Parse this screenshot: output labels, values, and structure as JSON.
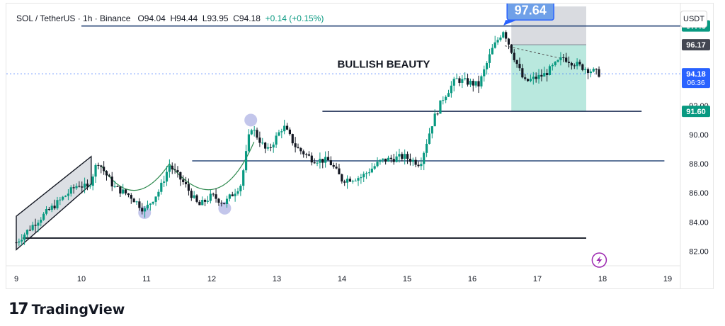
{
  "header": {
    "symbol": "SOL / TetherUS · 1h · Binance",
    "open": "O94.04",
    "high": "H94.44",
    "low": "L93.95",
    "close": "C94.18",
    "change": "+0.14 (+0.15%)",
    "currency": "USDT"
  },
  "footer": {
    "brand": "TradingView",
    "logo_icon": "tradingview-logo-icon"
  },
  "colors": {
    "up": "#089981",
    "down": "#131722",
    "level_line": "#2c4a7a",
    "marker": "#b8bce8",
    "target_zone": "#7fd6c2",
    "accent": "#2962ff"
  },
  "chart_data": {
    "type": "candlestick",
    "title": "",
    "annotation": "BULLISH BEAUTY",
    "ylim": [
      81,
      99
    ],
    "y_ticks": [
      82,
      84,
      86,
      88,
      90,
      92
    ],
    "x_ticks": [
      "9",
      "10",
      "11",
      "12",
      "13",
      "14",
      "15",
      "16",
      "17",
      "18",
      "19"
    ],
    "price_labels": [
      {
        "text": "97.46",
        "value": 97.46,
        "style": "green"
      },
      {
        "text": "96.17",
        "value": 96.17,
        "style": "dark"
      },
      {
        "text": "94.18",
        "sub": "06:36",
        "value": 94.18,
        "style": "blue"
      },
      {
        "text": "91.60",
        "value": 91.6,
        "style": "green"
      }
    ],
    "callout": {
      "text": "97.64",
      "value": 97.64
    },
    "horizontal_levels": [
      97.46,
      91.6,
      88.2,
      82.9
    ],
    "close_path": [
      {
        "day": 9.0,
        "price": 82.6
      },
      {
        "day": 9.3,
        "price": 84.0
      },
      {
        "day": 9.7,
        "price": 85.6
      },
      {
        "day": 9.95,
        "price": 86.6
      },
      {
        "day": 10.1,
        "price": 86.3
      },
      {
        "day": 10.25,
        "price": 88.2
      },
      {
        "day": 10.5,
        "price": 86.4
      },
      {
        "day": 10.75,
        "price": 85.8
      },
      {
        "day": 10.97,
        "price": 84.8
      },
      {
        "day": 11.2,
        "price": 86.2
      },
      {
        "day": 11.35,
        "price": 87.9
      },
      {
        "day": 11.6,
        "price": 86.5
      },
      {
        "day": 11.8,
        "price": 85.1
      },
      {
        "day": 12.0,
        "price": 85.8
      },
      {
        "day": 12.2,
        "price": 85.3
      },
      {
        "day": 12.45,
        "price": 86.6
      },
      {
        "day": 12.6,
        "price": 90.6
      },
      {
        "day": 12.85,
        "price": 88.8
      },
      {
        "day": 13.1,
        "price": 90.6
      },
      {
        "day": 13.3,
        "price": 89.1
      },
      {
        "day": 13.55,
        "price": 88.3
      },
      {
        "day": 13.8,
        "price": 88.2
      },
      {
        "day": 14.0,
        "price": 86.9
      },
      {
        "day": 14.3,
        "price": 87.1
      },
      {
        "day": 14.6,
        "price": 88.2
      },
      {
        "day": 14.95,
        "price": 88.5
      },
      {
        "day": 15.2,
        "price": 88.0
      },
      {
        "day": 15.4,
        "price": 91.0
      },
      {
        "day": 15.55,
        "price": 92.5
      },
      {
        "day": 15.75,
        "price": 93.8
      },
      {
        "day": 16.1,
        "price": 93.4
      },
      {
        "day": 16.3,
        "price": 95.8
      },
      {
        "day": 16.48,
        "price": 97.2
      },
      {
        "day": 16.6,
        "price": 95.8
      },
      {
        "day": 16.8,
        "price": 93.6
      },
      {
        "day": 17.1,
        "price": 94.1
      },
      {
        "day": 17.4,
        "price": 95.3
      },
      {
        "day": 17.65,
        "price": 94.7
      },
      {
        "day": 17.95,
        "price": 94.18
      }
    ],
    "highlight_markers": [
      {
        "day": 10.97,
        "price": 84.65
      },
      {
        "day": 12.2,
        "price": 84.95
      },
      {
        "day": 12.6,
        "price": 91.0
      }
    ]
  }
}
